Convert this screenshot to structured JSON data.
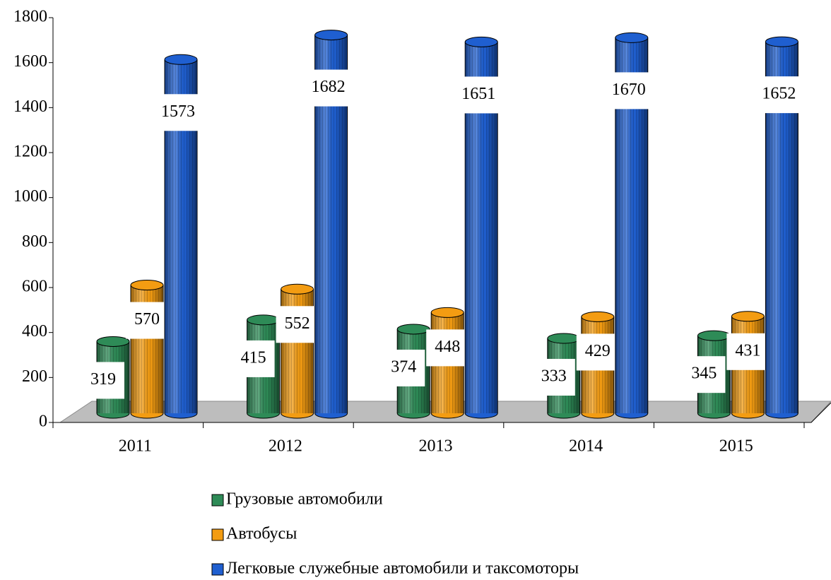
{
  "chart_data": {
    "type": "bar",
    "categories": [
      "2011",
      "2012",
      "2013",
      "2014",
      "2015"
    ],
    "series": [
      {
        "name": "Грузовые автомобили",
        "color": "#2e8b57",
        "values": [
          319,
          415,
          374,
          333,
          345
        ]
      },
      {
        "name": "Автобусы",
        "color": "#f39c12",
        "values": [
          570,
          552,
          448,
          429,
          431
        ]
      },
      {
        "name": "Легковые служебные автомобили и таксомоторы",
        "color": "#1f5fd0",
        "values": [
          1573,
          1682,
          1651,
          1670,
          1652
        ]
      }
    ],
    "ylim": [
      0,
      1800
    ],
    "yticks": [
      0,
      200,
      400,
      600,
      800,
      1000,
      1200,
      1400,
      1600,
      1800
    ],
    "legend": "bottom"
  }
}
